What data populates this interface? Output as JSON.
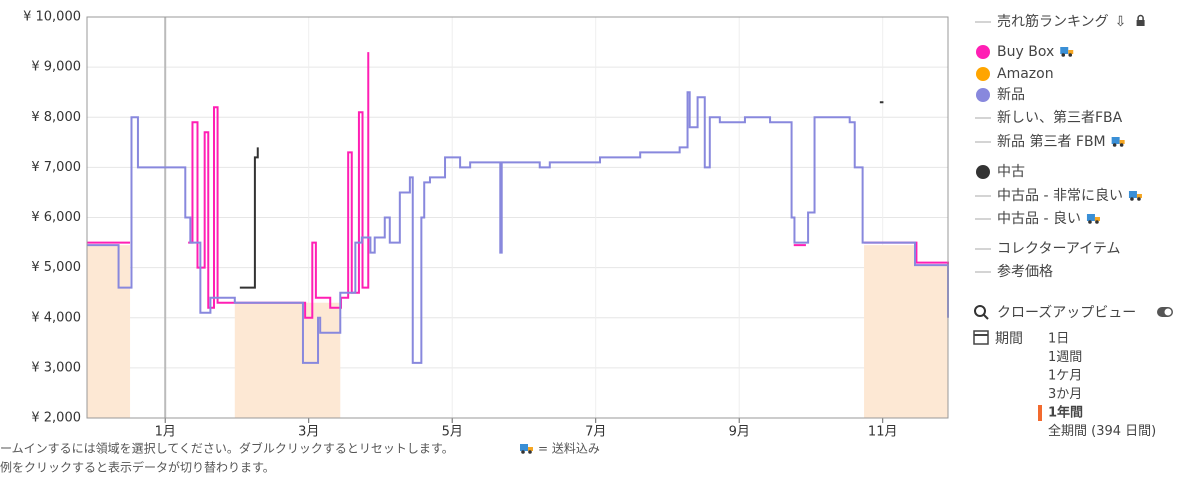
{
  "chart_data": {
    "type": "line",
    "xlim": [
      -0.09,
      11.91
    ],
    "xticks": [
      {
        "value": 1,
        "label": "1月"
      },
      {
        "value": 3,
        "label": "3月"
      },
      {
        "value": 5,
        "label": "5月"
      },
      {
        "value": 7,
        "label": "7月"
      },
      {
        "value": 9,
        "label": "9月"
      },
      {
        "value": 11,
        "label": "11月"
      }
    ],
    "ylim": [
      2000,
      10000
    ],
    "yticks": [
      {
        "value": 2000,
        "label": "¥ 2,000"
      },
      {
        "value": 3000,
        "label": "¥ 3,000"
      },
      {
        "value": 4000,
        "label": "¥ 4,000"
      },
      {
        "value": 5000,
        "label": "¥ 5,000"
      },
      {
        "value": 6000,
        "label": "¥ 6,000"
      },
      {
        "value": 7000,
        "label": "¥ 7,000"
      },
      {
        "value": 8000,
        "label": "¥ 8,000"
      },
      {
        "value": 9000,
        "label": "¥ 9,000"
      },
      {
        "value": 10000,
        "label": "¥ 10,000"
      }
    ],
    "grid": true,
    "step": true,
    "series": [
      {
        "name": "Buy Box",
        "color": "#ff1fb4",
        "type": "line",
        "x": [
          -0.09,
          0.51,
          0.53,
          1.32,
          1.38,
          1.45,
          1.55,
          1.6,
          1.68,
          1.73,
          1.97,
          2.88,
          2.95,
          3.05,
          3.1,
          3.3,
          3.45,
          3.55,
          3.6,
          3.7,
          3.75,
          3.83,
          3.87,
          9.76,
          9.93,
          9.95,
          10.74,
          11.47,
          11.91
        ],
        "values": [
          5500,
          5500,
          null,
          5500,
          7900,
          5000,
          7700,
          4200,
          8200,
          4300,
          4300,
          4300,
          4000,
          5500,
          4400,
          4200,
          4400,
          7300,
          4500,
          8100,
          4600,
          9300,
          null,
          5450,
          5450,
          null,
          5500,
          5100,
          4200
        ]
      },
      {
        "name": "Amazon",
        "color": "#ffa500",
        "fill": "#fde8d4",
        "type": "area",
        "x": [
          -0.09,
          0.51,
          0.53,
          1.97,
          3.44,
          3.46,
          10.74,
          11.45,
          11.91
        ],
        "values": [
          5450,
          5450,
          null,
          4300,
          4300,
          null,
          5450,
          5050,
          5050
        ]
      },
      {
        "name": "新品",
        "color": "#8888dd",
        "type": "line",
        "x": [
          -0.09,
          0.35,
          0.53,
          0.62,
          1.25,
          1.28,
          1.35,
          1.49,
          1.63,
          1.97,
          2.88,
          2.92,
          3.13,
          3.16,
          3.23,
          3.44,
          3.65,
          3.74,
          3.86,
          3.92,
          4.06,
          4.13,
          4.27,
          4.41,
          4.45,
          4.57,
          4.61,
          4.69,
          4.9,
          5.11,
          5.25,
          5.53,
          5.67,
          5.69,
          6.22,
          6.36,
          7.06,
          7.62,
          8.17,
          8.28,
          8.31,
          8.42,
          8.52,
          8.59,
          8.73,
          9.08,
          9.43,
          9.73,
          9.77,
          9.96,
          10.05,
          10.54,
          10.61,
          10.72,
          11.45,
          11.91
        ],
        "values": [
          5450,
          4600,
          8000,
          7000,
          7000,
          6000,
          5500,
          4100,
          4400,
          4300,
          4300,
          3100,
          4000,
          3700,
          3700,
          4500,
          5500,
          5600,
          5300,
          5600,
          6000,
          5500,
          6500,
          6800,
          3100,
          6000,
          6700,
          6800,
          7200,
          7000,
          7100,
          7100,
          5300,
          7100,
          7000,
          7100,
          7200,
          7300,
          7400,
          8500,
          7800,
          8400,
          7000,
          8000,
          7900,
          8000,
          7900,
          6000,
          5500,
          6100,
          8000,
          7900,
          7000,
          5500,
          5050,
          4000
        ]
      },
      {
        "name": "中古",
        "color": "#333333",
        "type": "line",
        "x": [
          2.04,
          2.25,
          2.29,
          2.32,
          10.96,
          11.01
        ],
        "values": [
          4600,
          7200,
          7400,
          null,
          8300,
          8300
        ]
      }
    ],
    "other_legend_items": [
      "売れ筋ランキング",
      "新しい、第三者FBA",
      "新品 第三者 FBM",
      "中古品 - 非常に良い",
      "中古品 - 良い",
      "コレクターアイテム",
      "参考価格"
    ]
  },
  "help_text": [
    "ームインするには領域を選択してください。ダブルクリックするとリセットします。",
    "= 送料込み",
    "例をクリックすると表示データが切り替わります。"
  ],
  "closeup": "クローズアップビュー",
  "period": {
    "label": "期間",
    "options": [
      "1日",
      "1週間",
      "1ケ月",
      "3か月",
      "1年間",
      "全期間 (394 日間)"
    ],
    "selected": 4
  }
}
